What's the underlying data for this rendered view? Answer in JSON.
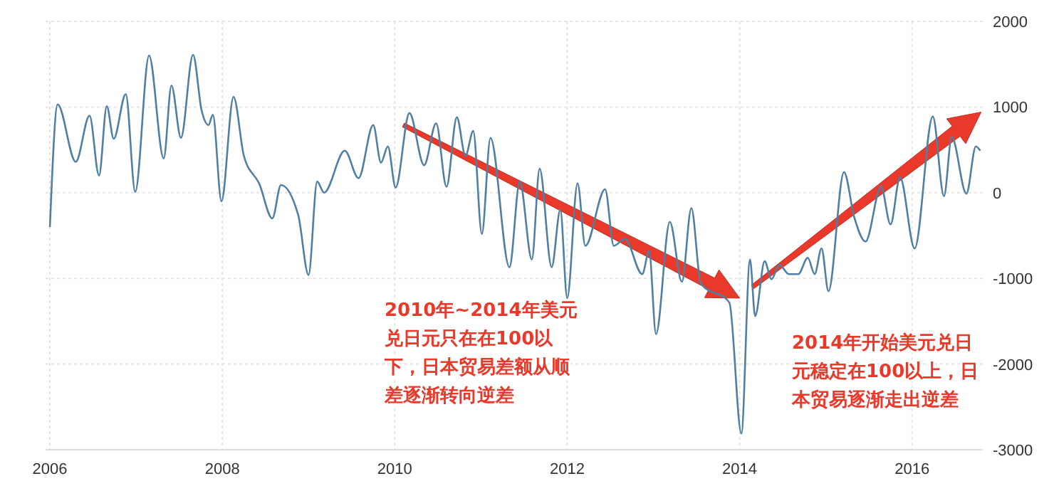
{
  "chart_data": {
    "type": "line",
    "x": [
      2006.0,
      2006.09,
      2006.3,
      2006.46,
      2006.57,
      2006.66,
      2006.74,
      2006.88,
      2006.99,
      2007.15,
      2007.32,
      2007.41,
      2007.52,
      2007.66,
      2007.76,
      2007.84,
      2007.89,
      2007.99,
      2008.13,
      2008.25,
      2008.43,
      2008.58,
      2008.68,
      2008.88,
      2009.0,
      2009.1,
      2009.18,
      2009.42,
      2009.58,
      2009.75,
      2009.84,
      2009.92,
      2010.01,
      2010.17,
      2010.34,
      2010.48,
      2010.6,
      2010.72,
      2010.82,
      2010.91,
      2011.01,
      2011.11,
      2011.33,
      2011.45,
      2011.59,
      2011.68,
      2011.82,
      2011.92,
      2012.0,
      2012.12,
      2012.21,
      2012.44,
      2012.54,
      2012.67,
      2012.87,
      2012.95,
      2013.03,
      2013.19,
      2013.33,
      2013.44,
      2013.55,
      2013.88,
      2014.02,
      2014.12,
      2014.18,
      2014.29,
      2014.37,
      2014.46,
      2014.57,
      2014.68,
      2014.79,
      2014.87,
      2014.95,
      2015.03,
      2015.21,
      2015.33,
      2015.46,
      2015.64,
      2015.75,
      2015.86,
      2016.03,
      2016.24,
      2016.37,
      2016.46,
      2016.63,
      2016.74,
      2016.79
    ],
    "series": [
      {
        "color": "#4f7fa3",
        "values": [
          -400,
          1030,
          360,
          900,
          200,
          1010,
          630,
          1150,
          10,
          1600,
          400,
          1250,
          640,
          1610,
          960,
          790,
          910,
          -100,
          1120,
          430,
          100,
          -300,
          90,
          -260,
          -960,
          130,
          0,
          490,
          170,
          790,
          350,
          540,
          60,
          930,
          320,
          810,
          70,
          880,
          430,
          720,
          -480,
          640,
          -870,
          130,
          -780,
          280,
          -870,
          -200,
          -1230,
          110,
          -620,
          40,
          -620,
          -540,
          -950,
          -680,
          -1650,
          -340,
          -1040,
          -180,
          -1060,
          -1280,
          -2810,
          -780,
          -1440,
          -800,
          -1010,
          -840,
          -950,
          -950,
          -760,
          -950,
          -650,
          -1150,
          240,
          -290,
          -570,
          70,
          -370,
          180,
          -650,
          890,
          -40,
          650,
          -10,
          540,
          490
        ]
      }
    ],
    "xlim": [
      2005.95,
      2016.82
    ],
    "ylim": [
      -3000,
      2000
    ],
    "xticks": [
      2006,
      2008,
      2010,
      2012,
      2014,
      2016
    ],
    "yticks": [
      -3000,
      -2000,
      -1000,
      0,
      1000,
      2000
    ],
    "grid": true,
    "line_style": "solid",
    "annotations": [
      "2010年~2014年美元兑日元只在在100以下，日本贸易差额从顺差逐渐转向逆差",
      "2014年开始美元兑日元稳定在100以上，日本贸易逐渐走出逆差"
    ]
  }
}
